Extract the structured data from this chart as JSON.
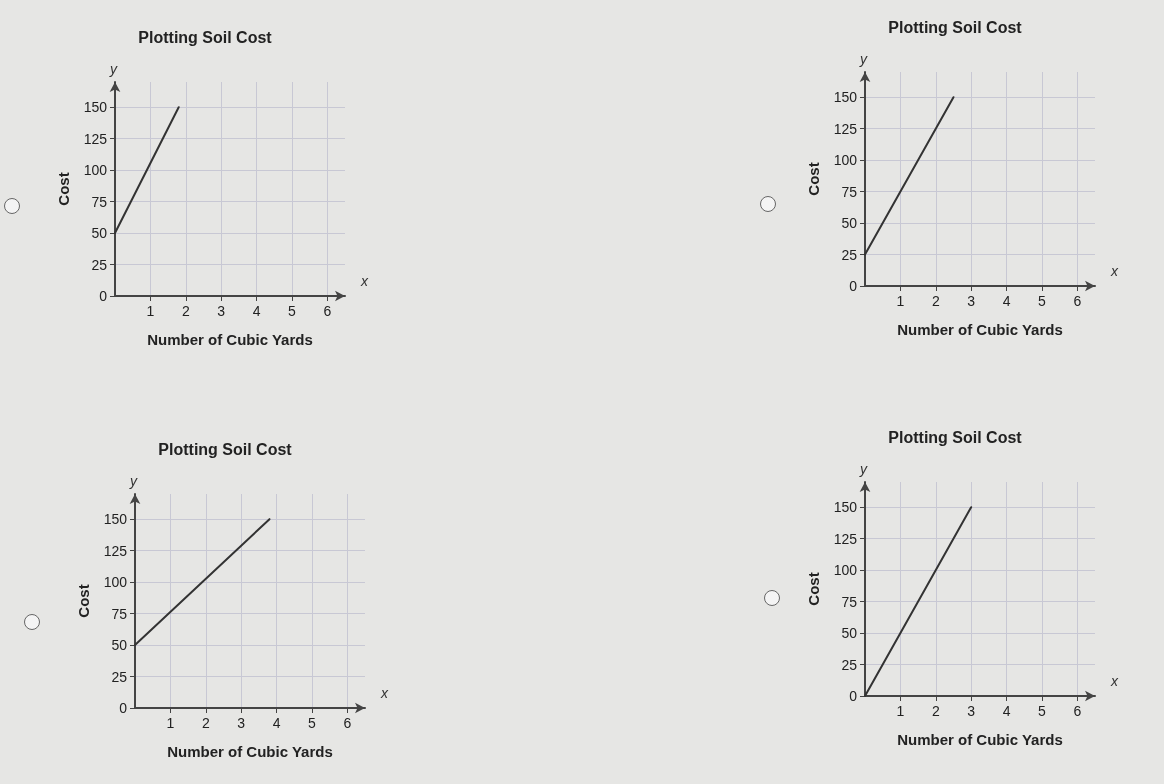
{
  "chart_data": [
    {
      "type": "line",
      "title": "Plotting Soil Cost",
      "xlabel": "Number of Cubic Yards",
      "ylabel": "Cost",
      "annotations": [
        "y",
        "x"
      ],
      "x": [
        0,
        1.8
      ],
      "series": [
        {
          "color": "#333333",
          "values": [
            50,
            150
          ]
        }
      ],
      "xlim": [
        0,
        6.5
      ],
      "xticks": [
        1,
        2,
        3,
        4,
        5,
        6
      ],
      "ylim": [
        0,
        170
      ],
      "yticks": [
        0,
        25,
        50,
        75,
        100,
        125,
        150
      ],
      "grid": true,
      "marker": "none",
      "line_style": "solid"
    },
    {
      "type": "line",
      "title": "Plotting Soil Cost",
      "xlabel": "Number of Cubic Yards",
      "ylabel": "Cost",
      "annotations": [
        "y",
        "x"
      ],
      "x": [
        0,
        2.5
      ],
      "series": [
        {
          "color": "#333333",
          "values": [
            25,
            150
          ]
        }
      ],
      "xlim": [
        0,
        6.5
      ],
      "xticks": [
        1,
        2,
        3,
        4,
        5,
        6
      ],
      "ylim": [
        0,
        170
      ],
      "yticks": [
        0,
        25,
        50,
        75,
        100,
        125,
        150
      ],
      "grid": true,
      "marker": "none",
      "line_style": "solid"
    },
    {
      "type": "line",
      "title": "Plotting Soil Cost",
      "xlabel": "Number of Cubic Yards",
      "ylabel": "Cost",
      "annotations": [
        "y",
        "x"
      ],
      "x": [
        0,
        3.8
      ],
      "series": [
        {
          "color": "#333333",
          "values": [
            50,
            150
          ]
        }
      ],
      "xlim": [
        0,
        6.5
      ],
      "xticks": [
        1,
        2,
        3,
        4,
        5,
        6
      ],
      "ylim": [
        0,
        170
      ],
      "yticks": [
        0,
        25,
        50,
        75,
        100,
        125,
        150
      ],
      "grid": true,
      "marker": "none",
      "line_style": "solid"
    },
    {
      "type": "line",
      "title": "Plotting Soil Cost",
      "xlabel": "Number of Cubic Yards",
      "ylabel": "Cost",
      "annotations": [
        "y",
        "x"
      ],
      "x": [
        0,
        3
      ],
      "series": [
        {
          "color": "#333333",
          "values": [
            0,
            150
          ]
        }
      ],
      "xlim": [
        0,
        6.5
      ],
      "xticks": [
        1,
        2,
        3,
        4,
        5,
        6
      ],
      "ylim": [
        0,
        170
      ],
      "yticks": [
        0,
        25,
        50,
        75,
        100,
        125,
        150
      ],
      "grid": true,
      "marker": "none",
      "line_style": "solid"
    }
  ]
}
